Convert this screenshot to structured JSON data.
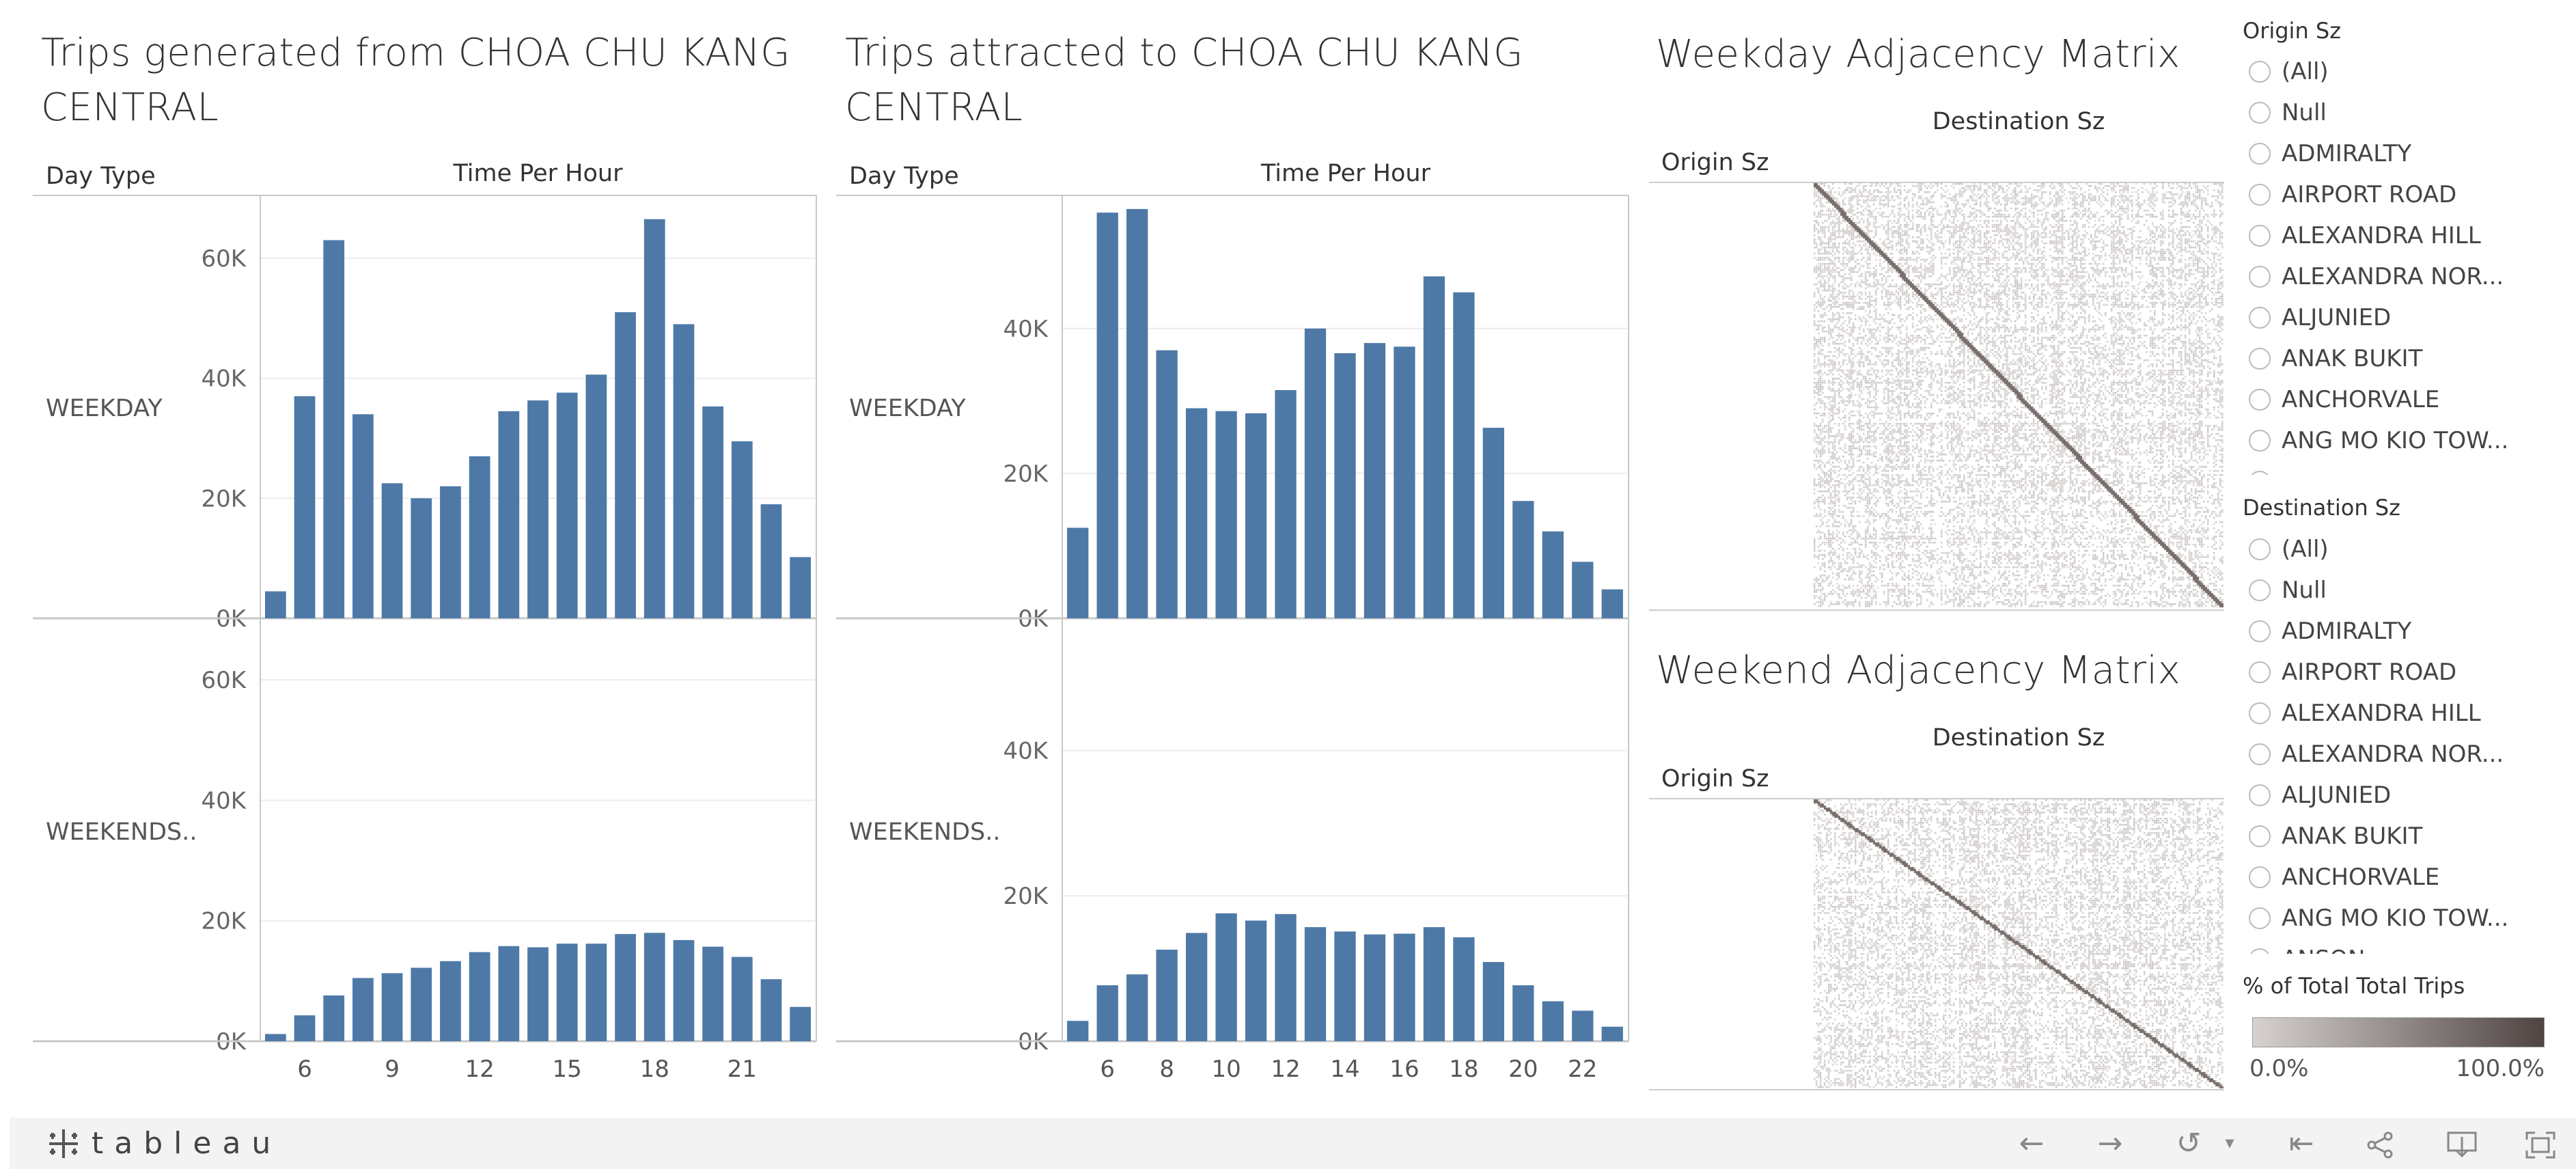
{
  "panels": {
    "generated": {
      "title": "Trips generated from CHOA CHU KANG\nCENTRAL",
      "day_type_label": "Day Type",
      "hour_label": "Time Per Hour",
      "weekday_label": "WEEKDAY",
      "weekend_label": "WEEKENDS.."
    },
    "attracted": {
      "title": "Trips attracted to CHOA CHU KANG\nCENTRAL",
      "day_type_label": "Day Type",
      "hour_label": "Time Per Hour",
      "weekday_label": "WEEKDAY",
      "weekend_label": "WEEKENDS.."
    }
  },
  "matrices": {
    "weekday": {
      "title": "Weekday Adjacency Matrix",
      "dest_label": "Destination Sz",
      "origin_label": "Origin Sz"
    },
    "weekend": {
      "title": "Weekend Adjacency Matrix",
      "dest_label": "Destination Sz",
      "origin_label": "Origin Sz"
    }
  },
  "filters": {
    "origin": {
      "title": "Origin Sz",
      "items": [
        "(All)",
        "Null",
        "ADMIRALTY",
        "AIRPORT ROAD",
        "ALEXANDRA HILL",
        "ALEXANDRA NOR...",
        "ALJUNIED",
        "ANAK BUKIT",
        "ANCHORVALE",
        "ANG MO KIO TOW..."
      ]
    },
    "destination": {
      "title": "Destination Sz",
      "items": [
        "(All)",
        "Null",
        "ADMIRALTY",
        "AIRPORT ROAD",
        "ALEXANDRA HILL",
        "ALEXANDRA NOR...",
        "ALJUNIED",
        "ANAK BUKIT",
        "ANCHORVALE",
        "ANG MO KIO TOW..."
      ],
      "partial_item": "ANSON"
    }
  },
  "legend": {
    "title": "% of Total Total Trips",
    "min_label": "0.0%",
    "max_label": "100.0%",
    "color_from": "#d7d2cf",
    "color_to": "#4e4442"
  },
  "footer": {
    "logo": "tableau"
  },
  "colors": {
    "bar": "#4e79a7",
    "axis": "#c8c8c8",
    "grid": "#ececec"
  },
  "chart_data": [
    {
      "type": "bar",
      "title": "Trips generated from CHOA CHU KANG CENTRAL",
      "xlabel": "Time Per Hour",
      "ylabel": "Day Type",
      "x": [
        5,
        6,
        7,
        8,
        9,
        10,
        11,
        12,
        13,
        14,
        15,
        16,
        17,
        18,
        19,
        20,
        21,
        22,
        23
      ],
      "x_ticks": [
        6,
        9,
        12,
        15,
        18,
        21
      ],
      "ylim": [
        0,
        70000
      ],
      "y_ticks": [
        0,
        20000,
        40000,
        60000
      ],
      "y_tick_labels": [
        "0K",
        "20K",
        "40K",
        "60K"
      ],
      "series": [
        {
          "name": "WEEKDAY",
          "values": [
            4500,
            37000,
            63000,
            34000,
            22500,
            20000,
            22000,
            27000,
            34500,
            36300,
            37600,
            40600,
            51000,
            66500,
            49000,
            35300,
            29500,
            19000,
            10200
          ]
        },
        {
          "name": "WEEKENDS..",
          "values": [
            1200,
            4300,
            7600,
            10500,
            11300,
            12200,
            13300,
            14800,
            15800,
            15600,
            16200,
            16200,
            17800,
            18000,
            16800,
            15700,
            14000,
            10300,
            5700
          ]
        }
      ]
    },
    {
      "type": "bar",
      "title": "Trips attracted to CHOA CHU KANG CENTRAL",
      "xlabel": "Time Per Hour",
      "ylabel": "Day Type",
      "x": [
        5,
        6,
        7,
        8,
        9,
        10,
        11,
        12,
        13,
        14,
        15,
        16,
        17,
        18,
        19,
        20,
        21,
        22,
        23
      ],
      "x_ticks": [
        6,
        8,
        10,
        12,
        14,
        16,
        18,
        20,
        22
      ],
      "ylim": [
        0,
        58000
      ],
      "y_ticks": [
        0,
        20000,
        40000
      ],
      "y_tick_labels": [
        "0K",
        "20K",
        "40K"
      ],
      "series": [
        {
          "name": "WEEKDAY",
          "values": [
            12500,
            56000,
            56500,
            37000,
            29000,
            28600,
            28300,
            31500,
            40000,
            36600,
            38000,
            37500,
            47200,
            45000,
            26300,
            16200,
            12000,
            7800,
            4000
          ]
        },
        {
          "name": "WEEKENDS..",
          "values": [
            2800,
            7700,
            9200,
            12600,
            14900,
            17600,
            16600,
            17500,
            15700,
            15100,
            14700,
            14800,
            15700,
            14300,
            10900,
            7700,
            5500,
            4200,
            2000
          ]
        }
      ]
    }
  ]
}
